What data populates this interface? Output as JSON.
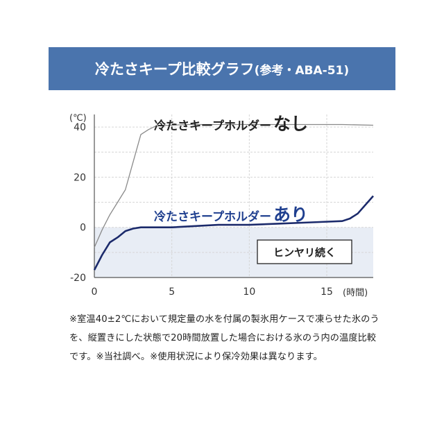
{
  "banner": {
    "title": "冷たさキープ比較グラフ",
    "subtitle": "(参考・ABA-51)"
  },
  "chart_data": {
    "type": "line",
    "title": "冷たさキープ比較グラフ(参考・ABA-51)",
    "ylabel": "(℃)",
    "xlabel": "(時間)",
    "xlim": [
      0,
      18
    ],
    "ylim": [
      -20,
      45
    ],
    "x_ticks": [
      "0",
      "5",
      "10",
      "15"
    ],
    "y_ticks": [
      "40",
      "20",
      "0",
      "-20"
    ],
    "grid": true,
    "series": [
      {
        "name": "冷たさキープホルダーなし",
        "name_main": "冷たさキープホルダー",
        "name_emph": "なし",
        "color": "#8a8a8a",
        "x": [
          0,
          0.5,
          1,
          2,
          3,
          3.5,
          4,
          6,
          8,
          10,
          12,
          14,
          16,
          18
        ],
        "y": [
          -8,
          -1,
          5,
          15,
          37,
          39,
          40.5,
          41,
          41,
          41,
          41,
          41,
          41,
          40.7
        ]
      },
      {
        "name": "冷たさキープホルダーあり",
        "name_main": "冷たさキープホルダー",
        "name_emph": "あり",
        "color": "#1b2a6b",
        "x": [
          0,
          0.5,
          1,
          1.5,
          2,
          2.5,
          3,
          5,
          8,
          10,
          12,
          14,
          16,
          16.5,
          17,
          18
        ],
        "y": [
          -17,
          -11,
          -6,
          -4,
          -1.5,
          -0.5,
          0,
          0,
          1,
          1,
          1.5,
          2,
          2.5,
          3.5,
          5.5,
          12.5
        ]
      }
    ],
    "annotations": [
      "ヒンヤリ続く"
    ],
    "shade_below_zero_color": "#e8edf5"
  },
  "note": "※室温40±2℃において規定量の水を付属の製氷用ケースで凍らせた氷のうを、縦置きにした状態で20時間放置した場合における氷のう内の温度比較です。※当社調べ。※使用状況により保冷効果は異なります。",
  "colors": {
    "banner": "#4a74ad",
    "grid": "#d6d6d6"
  }
}
